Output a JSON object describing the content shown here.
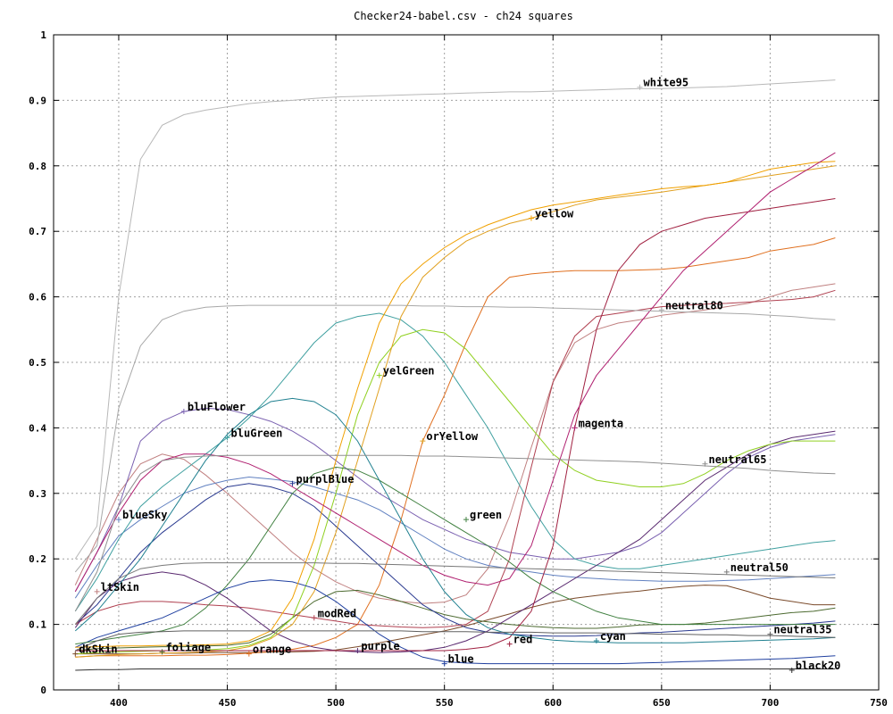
{
  "chart_data": {
    "type": "line",
    "title": "Checker24-babel.csv - ch24 squares",
    "xlabel": "",
    "ylabel": "",
    "xlim": [
      370,
      750
    ],
    "ylim": [
      0,
      1
    ],
    "xticks": [
      400,
      450,
      500,
      550,
      600,
      650,
      700,
      750
    ],
    "yticks": [
      0,
      0.1,
      0.2,
      0.3,
      0.4,
      0.5,
      0.6,
      0.7,
      0.8,
      0.9,
      1
    ],
    "grid": true,
    "legend": "none",
    "x": [
      380,
      390,
      400,
      410,
      420,
      430,
      440,
      450,
      460,
      470,
      480,
      490,
      500,
      510,
      520,
      530,
      540,
      550,
      560,
      570,
      580,
      590,
      600,
      610,
      620,
      630,
      640,
      650,
      660,
      670,
      680,
      690,
      700,
      710,
      720,
      730
    ],
    "series": [
      {
        "name": "dkSkin",
        "color": "#7a4a2a",
        "label_x": 380,
        "label_y": 0.055,
        "values": [
          0.055,
          0.055,
          0.055,
          0.055,
          0.056,
          0.056,
          0.057,
          0.057,
          0.057,
          0.058,
          0.058,
          0.059,
          0.061,
          0.066,
          0.072,
          0.078,
          0.084,
          0.09,
          0.098,
          0.107,
          0.116,
          0.126,
          0.134,
          0.14,
          0.144,
          0.148,
          0.151,
          0.155,
          0.158,
          0.16,
          0.159,
          0.15,
          0.14,
          0.135,
          0.13,
          0.13
        ]
      },
      {
        "name": "ltSkin",
        "color": "#c08080",
        "label_x": 390,
        "label_y": 0.15,
        "values": [
          0.16,
          0.23,
          0.3,
          0.345,
          0.36,
          0.352,
          0.328,
          0.3,
          0.27,
          0.24,
          0.21,
          0.185,
          0.165,
          0.15,
          0.14,
          0.135,
          0.132,
          0.134,
          0.145,
          0.185,
          0.265,
          0.37,
          0.47,
          0.53,
          0.55,
          0.56,
          0.565,
          0.572,
          0.576,
          0.58,
          0.585,
          0.59,
          0.6,
          0.61,
          0.615,
          0.62
        ]
      },
      {
        "name": "blueSky",
        "color": "#6080c0",
        "label_x": 400,
        "label_y": 0.26,
        "values": [
          0.14,
          0.19,
          0.235,
          0.26,
          0.28,
          0.3,
          0.312,
          0.32,
          0.325,
          0.322,
          0.318,
          0.31,
          0.3,
          0.29,
          0.275,
          0.255,
          0.235,
          0.215,
          0.2,
          0.19,
          0.185,
          0.18,
          0.175,
          0.172,
          0.17,
          0.168,
          0.167,
          0.166,
          0.166,
          0.166,
          0.167,
          0.168,
          0.17,
          0.172,
          0.174,
          0.176
        ]
      },
      {
        "name": "foliage",
        "color": "#4c6a30",
        "label_x": 420,
        "label_y": 0.058,
        "values": [
          0.06,
          0.063,
          0.064,
          0.065,
          0.066,
          0.066,
          0.067,
          0.068,
          0.072,
          0.085,
          0.11,
          0.135,
          0.15,
          0.152,
          0.145,
          0.135,
          0.125,
          0.115,
          0.108,
          0.104,
          0.1,
          0.097,
          0.095,
          0.094,
          0.094,
          0.096,
          0.099,
          0.1,
          0.1,
          0.102,
          0.106,
          0.11,
          0.114,
          0.118,
          0.12,
          0.125
        ]
      },
      {
        "name": "bluFlower",
        "color": "#7a60b0",
        "label_x": 430,
        "label_y": 0.425,
        "values": [
          0.15,
          0.21,
          0.28,
          0.38,
          0.41,
          0.425,
          0.43,
          0.428,
          0.42,
          0.41,
          0.395,
          0.375,
          0.35,
          0.325,
          0.3,
          0.28,
          0.26,
          0.245,
          0.23,
          0.22,
          0.21,
          0.205,
          0.2,
          0.2,
          0.205,
          0.21,
          0.22,
          0.24,
          0.27,
          0.3,
          0.33,
          0.355,
          0.37,
          0.38,
          0.385,
          0.39
        ]
      },
      {
        "name": "bluGreen",
        "color": "#40a0a0",
        "label_x": 450,
        "label_y": 0.385,
        "values": [
          0.12,
          0.17,
          0.23,
          0.28,
          0.31,
          0.335,
          0.36,
          0.385,
          0.415,
          0.45,
          0.49,
          0.53,
          0.56,
          0.57,
          0.575,
          0.565,
          0.54,
          0.5,
          0.45,
          0.4,
          0.34,
          0.28,
          0.23,
          0.2,
          0.19,
          0.185,
          0.185,
          0.19,
          0.195,
          0.2,
          0.205,
          0.21,
          0.215,
          0.22,
          0.225,
          0.228
        ]
      },
      {
        "name": "orange",
        "color": "#e07020",
        "label_x": 460,
        "label_y": 0.055,
        "values": [
          0.05,
          0.052,
          0.052,
          0.052,
          0.052,
          0.053,
          0.053,
          0.054,
          0.056,
          0.058,
          0.062,
          0.068,
          0.08,
          0.1,
          0.16,
          0.26,
          0.38,
          0.45,
          0.53,
          0.6,
          0.63,
          0.635,
          0.638,
          0.64,
          0.64,
          0.64,
          0.641,
          0.642,
          0.645,
          0.65,
          0.655,
          0.66,
          0.67,
          0.675,
          0.68,
          0.69
        ]
      },
      {
        "name": "purplBlue",
        "color": "#2a3a90",
        "label_x": 480,
        "label_y": 0.315,
        "values": [
          0.1,
          0.13,
          0.17,
          0.21,
          0.24,
          0.265,
          0.29,
          0.31,
          0.315,
          0.31,
          0.3,
          0.28,
          0.25,
          0.22,
          0.19,
          0.16,
          0.13,
          0.11,
          0.095,
          0.088,
          0.085,
          0.083,
          0.082,
          0.082,
          0.083,
          0.085,
          0.087,
          0.088,
          0.09,
          0.092,
          0.094,
          0.096,
          0.098,
          0.1,
          0.102,
          0.105
        ]
      },
      {
        "name": "modRed",
        "color": "#b04050",
        "label_x": 490,
        "label_y": 0.11,
        "values": [
          0.1,
          0.12,
          0.13,
          0.135,
          0.135,
          0.133,
          0.13,
          0.128,
          0.125,
          0.12,
          0.115,
          0.11,
          0.105,
          0.1,
          0.098,
          0.096,
          0.095,
          0.096,
          0.1,
          0.12,
          0.2,
          0.34,
          0.47,
          0.54,
          0.57,
          0.575,
          0.58,
          0.585,
          0.587,
          0.589,
          0.59,
          0.592,
          0.594,
          0.596,
          0.6,
          0.61
        ]
      },
      {
        "name": "purple",
        "color": "#5a2a70",
        "label_x": 510,
        "label_y": 0.06,
        "values": [
          0.095,
          0.14,
          0.165,
          0.175,
          0.18,
          0.175,
          0.16,
          0.14,
          0.115,
          0.09,
          0.075,
          0.065,
          0.06,
          0.058,
          0.057,
          0.058,
          0.06,
          0.065,
          0.075,
          0.09,
          0.11,
          0.13,
          0.15,
          0.17,
          0.19,
          0.21,
          0.23,
          0.26,
          0.29,
          0.32,
          0.34,
          0.36,
          0.375,
          0.385,
          0.39,
          0.395
        ]
      },
      {
        "name": "yelGreen",
        "color": "#90d020",
        "label_x": 520,
        "label_y": 0.48,
        "values": [
          0.055,
          0.057,
          0.058,
          0.059,
          0.06,
          0.06,
          0.061,
          0.063,
          0.068,
          0.08,
          0.11,
          0.19,
          0.3,
          0.42,
          0.5,
          0.54,
          0.55,
          0.545,
          0.52,
          0.48,
          0.44,
          0.4,
          0.36,
          0.335,
          0.32,
          0.315,
          0.31,
          0.31,
          0.315,
          0.33,
          0.35,
          0.365,
          0.375,
          0.38,
          0.38,
          0.38
        ]
      },
      {
        "name": "orYellow",
        "color": "#e0a020",
        "label_x": 540,
        "label_y": 0.38,
        "values": [
          0.05,
          0.052,
          0.054,
          0.055,
          0.056,
          0.057,
          0.058,
          0.06,
          0.066,
          0.078,
          0.1,
          0.15,
          0.24,
          0.35,
          0.46,
          0.57,
          0.63,
          0.66,
          0.685,
          0.7,
          0.712,
          0.72,
          0.73,
          0.74,
          0.748,
          0.752,
          0.756,
          0.76,
          0.765,
          0.77,
          0.775,
          0.78,
          0.785,
          0.79,
          0.795,
          0.8
        ]
      },
      {
        "name": "blue",
        "color": "#2040a0",
        "label_x": 550,
        "label_y": 0.04,
        "values": [
          0.065,
          0.08,
          0.09,
          0.1,
          0.11,
          0.125,
          0.14,
          0.155,
          0.165,
          0.168,
          0.165,
          0.155,
          0.135,
          0.11,
          0.085,
          0.065,
          0.05,
          0.043,
          0.041,
          0.04,
          0.04,
          0.04,
          0.04,
          0.04,
          0.04,
          0.04,
          0.041,
          0.042,
          0.043,
          0.044,
          0.045,
          0.046,
          0.047,
          0.048,
          0.05,
          0.052
        ]
      },
      {
        "name": "green",
        "color": "#408040",
        "label_x": 560,
        "label_y": 0.26,
        "values": [
          0.07,
          0.075,
          0.08,
          0.085,
          0.09,
          0.1,
          0.125,
          0.16,
          0.2,
          0.25,
          0.3,
          0.33,
          0.34,
          0.335,
          0.32,
          0.3,
          0.28,
          0.26,
          0.24,
          0.22,
          0.195,
          0.17,
          0.15,
          0.135,
          0.12,
          0.11,
          0.105,
          0.1,
          0.1,
          0.1,
          0.1,
          0.1,
          0.1,
          0.1,
          0.1,
          0.1
        ]
      },
      {
        "name": "red",
        "color": "#a02040",
        "label_x": 580,
        "label_y": 0.07,
        "values": [
          0.06,
          0.06,
          0.06,
          0.06,
          0.06,
          0.06,
          0.06,
          0.06,
          0.06,
          0.06,
          0.06,
          0.06,
          0.06,
          0.06,
          0.06,
          0.06,
          0.06,
          0.06,
          0.062,
          0.066,
          0.08,
          0.12,
          0.22,
          0.4,
          0.55,
          0.64,
          0.68,
          0.7,
          0.71,
          0.72,
          0.725,
          0.73,
          0.735,
          0.74,
          0.745,
          0.75
        ]
      },
      {
        "name": "yellow",
        "color": "#f0a000",
        "label_x": 590,
        "label_y": 0.72,
        "values": [
          0.065,
          0.066,
          0.067,
          0.067,
          0.068,
          0.068,
          0.069,
          0.07,
          0.075,
          0.09,
          0.14,
          0.23,
          0.35,
          0.46,
          0.56,
          0.62,
          0.65,
          0.675,
          0.695,
          0.71,
          0.722,
          0.733,
          0.74,
          0.745,
          0.75,
          0.755,
          0.76,
          0.765,
          0.768,
          0.77,
          0.775,
          0.785,
          0.795,
          0.8,
          0.805,
          0.807
        ]
      },
      {
        "name": "magenta",
        "color": "#b02070",
        "label_x": 610,
        "label_y": 0.4,
        "values": [
          0.15,
          0.21,
          0.27,
          0.32,
          0.35,
          0.36,
          0.36,
          0.355,
          0.345,
          0.33,
          0.31,
          0.29,
          0.27,
          0.25,
          0.23,
          0.21,
          0.19,
          0.175,
          0.165,
          0.16,
          0.17,
          0.22,
          0.32,
          0.42,
          0.48,
          0.52,
          0.56,
          0.6,
          0.64,
          0.67,
          0.7,
          0.73,
          0.76,
          0.78,
          0.8,
          0.82
        ]
      },
      {
        "name": "cyan",
        "color": "#208090",
        "label_x": 620,
        "label_y": 0.075,
        "values": [
          0.09,
          0.12,
          0.16,
          0.2,
          0.25,
          0.3,
          0.35,
          0.39,
          0.42,
          0.44,
          0.445,
          0.44,
          0.42,
          0.38,
          0.32,
          0.26,
          0.2,
          0.15,
          0.115,
          0.095,
          0.085,
          0.08,
          0.076,
          0.074,
          0.073,
          0.072,
          0.072,
          0.072,
          0.072,
          0.073,
          0.074,
          0.075,
          0.076,
          0.077,
          0.078,
          0.08
        ]
      },
      {
        "name": "white95",
        "color": "#b8b8b8",
        "label_x": 640,
        "label_y": 0.92,
        "values": [
          0.2,
          0.25,
          0.6,
          0.81,
          0.862,
          0.878,
          0.885,
          0.89,
          0.895,
          0.898,
          0.9,
          0.903,
          0.905,
          0.906,
          0.907,
          0.908,
          0.909,
          0.91,
          0.911,
          0.912,
          0.913,
          0.913,
          0.914,
          0.915,
          0.916,
          0.917,
          0.918,
          0.918,
          0.919,
          0.92,
          0.921,
          0.923,
          0.925,
          0.927,
          0.929,
          0.931
        ]
      },
      {
        "name": "neutral80",
        "color": "#a8a8a8",
        "label_x": 650,
        "label_y": 0.58,
        "values": [
          0.18,
          0.22,
          0.43,
          0.525,
          0.565,
          0.578,
          0.584,
          0.586,
          0.587,
          0.587,
          0.587,
          0.587,
          0.587,
          0.587,
          0.587,
          0.587,
          0.586,
          0.586,
          0.585,
          0.585,
          0.584,
          0.584,
          0.583,
          0.582,
          0.581,
          0.58,
          0.579,
          0.578,
          0.577,
          0.576,
          0.575,
          0.574,
          0.572,
          0.57,
          0.567,
          0.565
        ]
      },
      {
        "name": "neutral65",
        "color": "#909090",
        "label_x": 670,
        "label_y": 0.345,
        "values": [
          0.12,
          0.18,
          0.28,
          0.33,
          0.35,
          0.355,
          0.357,
          0.358,
          0.358,
          0.358,
          0.358,
          0.358,
          0.358,
          0.358,
          0.358,
          0.358,
          0.357,
          0.357,
          0.356,
          0.355,
          0.354,
          0.353,
          0.352,
          0.351,
          0.35,
          0.349,
          0.348,
          0.346,
          0.344,
          0.342,
          0.34,
          0.338,
          0.335,
          0.333,
          0.331,
          0.33
        ]
      },
      {
        "name": "neutral50",
        "color": "#787878",
        "label_x": 680,
        "label_y": 0.18,
        "values": [
          0.1,
          0.14,
          0.17,
          0.185,
          0.19,
          0.193,
          0.194,
          0.194,
          0.194,
          0.194,
          0.194,
          0.194,
          0.193,
          0.193,
          0.192,
          0.191,
          0.19,
          0.189,
          0.188,
          0.187,
          0.186,
          0.185,
          0.184,
          0.183,
          0.182,
          0.181,
          0.18,
          0.179,
          0.178,
          0.177,
          0.176,
          0.175,
          0.174,
          0.173,
          0.172,
          0.171
        ]
      },
      {
        "name": "neutral35",
        "color": "#606060",
        "label_x": 700,
        "label_y": 0.085,
        "values": [
          0.06,
          0.075,
          0.085,
          0.088,
          0.089,
          0.09,
          0.09,
          0.09,
          0.09,
          0.09,
          0.09,
          0.09,
          0.09,
          0.09,
          0.09,
          0.09,
          0.089,
          0.089,
          0.089,
          0.088,
          0.088,
          0.088,
          0.087,
          0.087,
          0.087,
          0.086,
          0.086,
          0.085,
          0.085,
          0.084,
          0.084,
          0.083,
          0.083,
          0.082,
          0.081,
          0.08
        ]
      },
      {
        "name": "black20",
        "color": "#303030",
        "label_x": 710,
        "label_y": 0.03,
        "values": [
          0.03,
          0.031,
          0.031,
          0.032,
          0.032,
          0.032,
          0.032,
          0.032,
          0.032,
          0.032,
          0.032,
          0.032,
          0.032,
          0.032,
          0.032,
          0.032,
          0.032,
          0.032,
          0.032,
          0.032,
          0.032,
          0.032,
          0.032,
          0.032,
          0.032,
          0.032,
          0.032,
          0.032,
          0.032,
          0.032,
          0.032,
          0.032,
          0.032,
          0.032,
          0.032,
          0.032
        ]
      }
    ]
  }
}
